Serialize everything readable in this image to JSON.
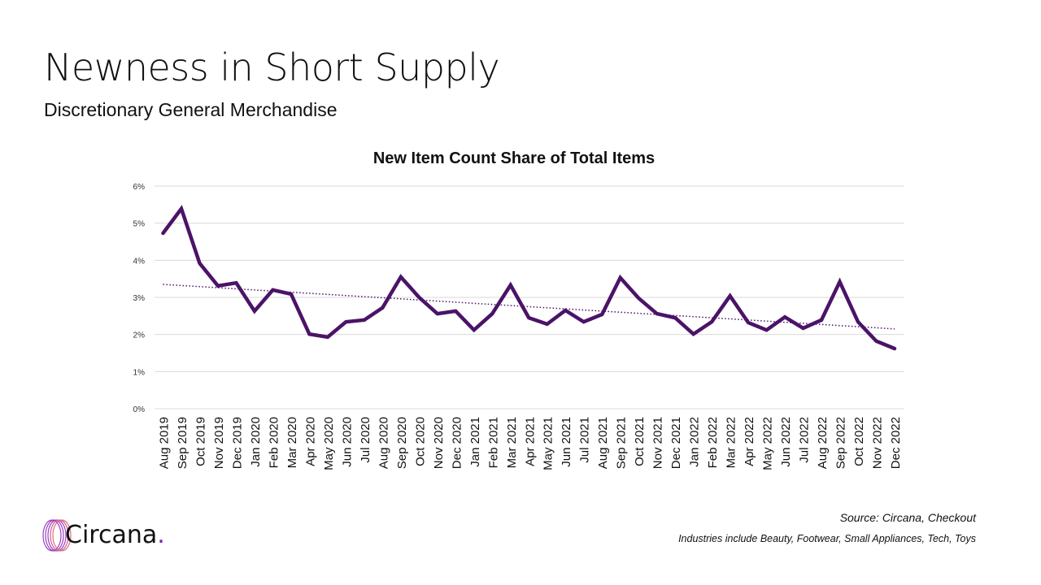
{
  "header": {
    "title": "Newness in Short Supply",
    "subtitle": "Discretionary General Merchandise"
  },
  "footer": {
    "source": "Source: Circana, Checkout",
    "industries": "Industries include Beauty, Footwear, Small Appliances, Tech, Toys",
    "logo_text": "Circana",
    "logo_dot": "."
  },
  "colors": {
    "line": "#4b1368",
    "grid": "#d9d9d9",
    "trend": "#4b1368"
  },
  "chart_data": {
    "type": "line",
    "title": "New Item Count Share of Total Items",
    "xlabel": "",
    "ylabel": "",
    "ylim": [
      0,
      6
    ],
    "yticks": [
      0,
      1,
      2,
      3,
      4,
      5,
      6
    ],
    "ytick_labels": [
      "0%",
      "1%",
      "2%",
      "3%",
      "4%",
      "5%",
      "6%"
    ],
    "grid": true,
    "categories": [
      "Aug 2019",
      "Sep 2019",
      "Oct 2019",
      "Nov 2019",
      "Dec 2019",
      "Jan 2020",
      "Feb 2020",
      "Mar 2020",
      "Apr 2020",
      "May 2020",
      "Jun 2020",
      "Jul 2020",
      "Aug 2020",
      "Sep 2020",
      "Oct 2020",
      "Nov 2020",
      "Dec 2020",
      "Jan 2021",
      "Feb 2021",
      "Mar 2021",
      "Apr 2021",
      "May 2021",
      "Jun 2021",
      "Jul 2021",
      "Aug 2021",
      "Sep 2021",
      "Oct 2021",
      "Nov 2021",
      "Dec 2021",
      "Jan 2022",
      "Feb 2022",
      "Mar 2022",
      "Apr 2022",
      "May 2022",
      "Jun 2022",
      "Jul 2022",
      "Aug 2022",
      "Sep 2022",
      "Oct 2022",
      "Nov 2022",
      "Dec 2022"
    ],
    "series": [
      {
        "name": "New Item Count Share",
        "values": [
          4.73,
          5.39,
          3.92,
          3.31,
          3.39,
          2.63,
          3.2,
          3.09,
          2.01,
          1.93,
          2.34,
          2.39,
          2.72,
          3.55,
          3.0,
          2.56,
          2.63,
          2.12,
          2.56,
          3.33,
          2.45,
          2.28,
          2.65,
          2.34,
          2.54,
          3.53,
          2.98,
          2.56,
          2.45,
          2.01,
          2.34,
          3.04,
          2.32,
          2.12,
          2.47,
          2.17,
          2.39,
          3.42,
          2.34,
          1.82,
          1.62
        ]
      }
    ],
    "trendline": {
      "type": "linear",
      "start": 3.35,
      "end": 2.15
    }
  }
}
